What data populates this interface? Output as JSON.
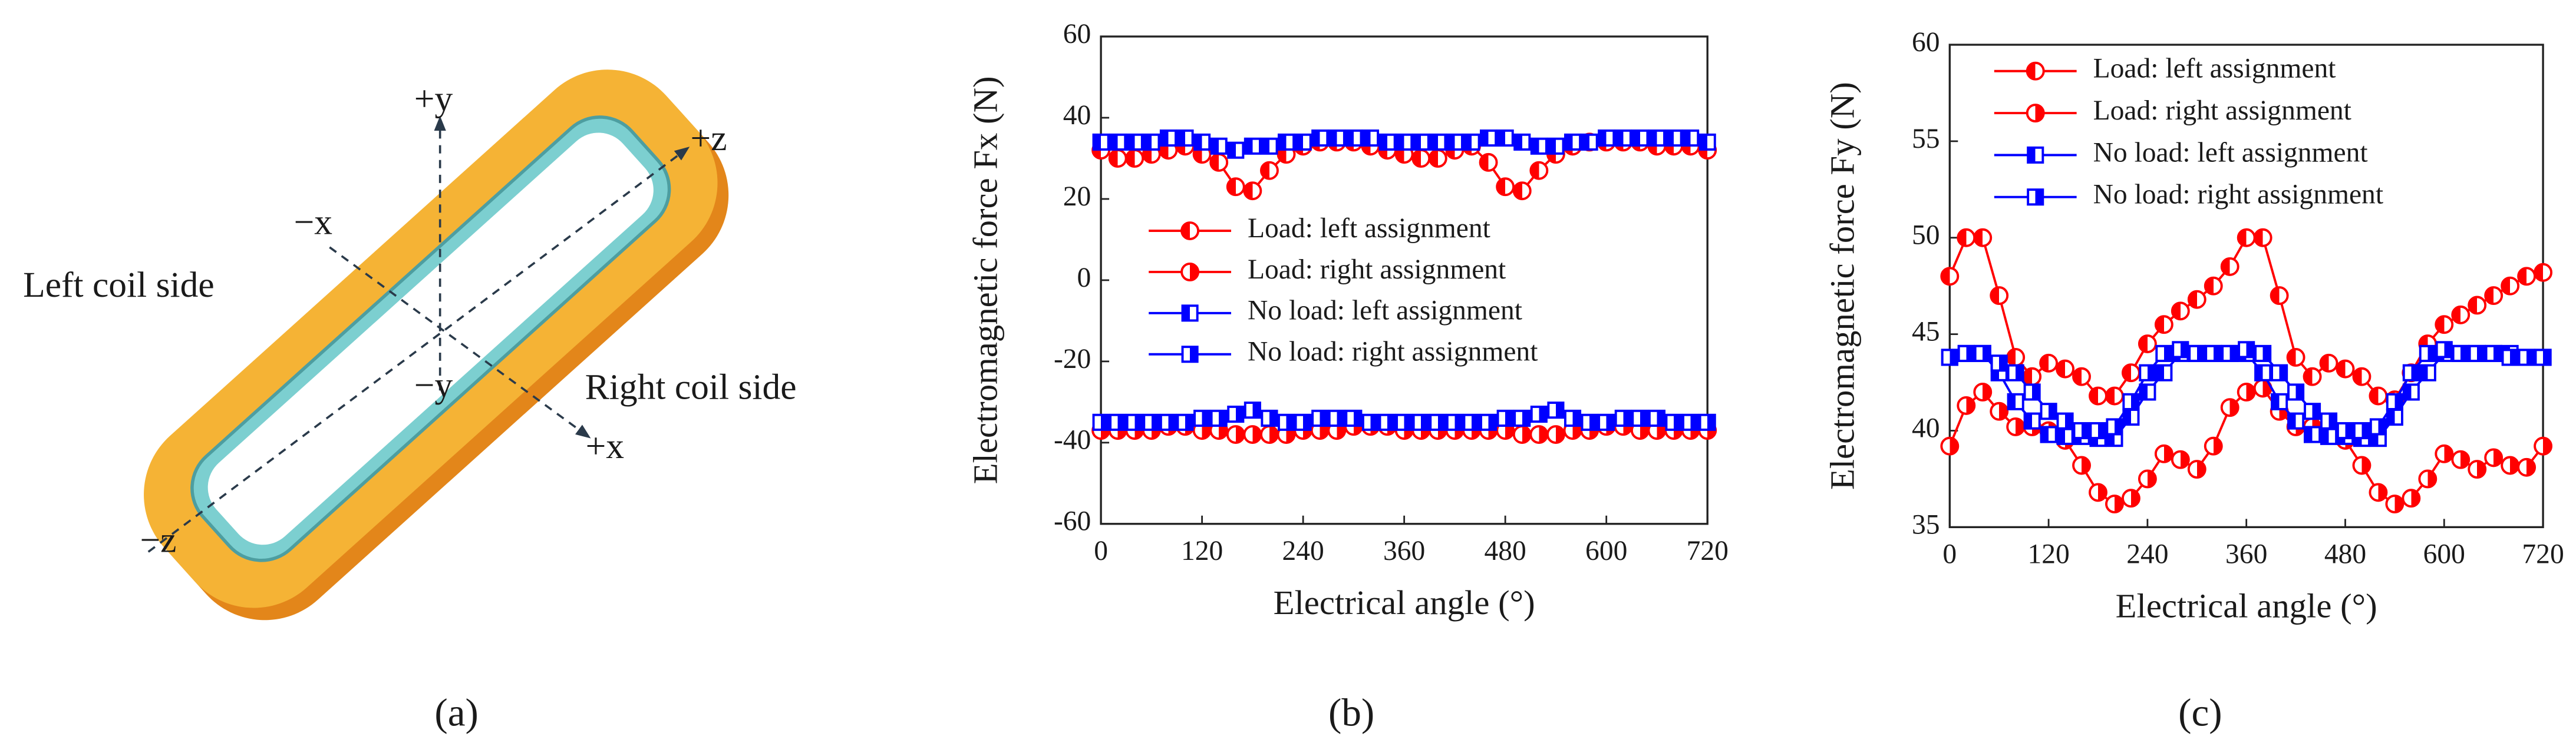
{
  "diagram": {
    "labels": [
      "+y",
      "+z",
      "−x",
      "Left coil side",
      "−y",
      "Right coil side",
      "+x",
      "−z"
    ]
  },
  "panel_labels": [
    "(a)",
    "(b)",
    "(c)"
  ],
  "chart_data": [
    {
      "type": "line",
      "x_label": "Electrical angle (°)",
      "y_label": "Electromagnetic force Fx (N)",
      "x": [
        0,
        20,
        40,
        60,
        80,
        100,
        120,
        140,
        160,
        180,
        200,
        220,
        240,
        260,
        280,
        300,
        320,
        340,
        360,
        380,
        400,
        420,
        440,
        460,
        480,
        500,
        520,
        540,
        560,
        580,
        600,
        620,
        640,
        660,
        680,
        700,
        720
      ],
      "xlim": [
        0,
        720
      ],
      "xticks": [
        0,
        120,
        240,
        360,
        480,
        600,
        720
      ],
      "ylim": [
        -60,
        60
      ],
      "yticks": [
        -60,
        -40,
        -20,
        0,
        20,
        40,
        60
      ],
      "legend": "center",
      "series": [
        {
          "name": "Load: left assignment",
          "color": "#ff0000",
          "marker": "circle",
          "half": "left",
          "values": [
            32,
            30,
            30,
            31,
            32,
            33,
            31,
            29,
            23,
            22,
            27,
            31,
            33,
            34,
            34,
            34,
            33,
            32,
            31,
            30,
            30,
            32,
            33,
            29,
            23,
            22,
            27,
            31,
            33,
            34,
            34,
            34,
            34,
            33,
            33,
            33,
            32
          ]
        },
        {
          "name": "Load: right assignment",
          "color": "#ff0000",
          "marker": "circle",
          "half": "right",
          "values": [
            -37,
            -37,
            -37,
            -37,
            -36,
            -36,
            -37,
            -37,
            -38,
            -38,
            -38,
            -38,
            -37,
            -37,
            -37,
            -36,
            -36,
            -36,
            -37,
            -37,
            -37,
            -37,
            -37,
            -37,
            -37,
            -38,
            -38,
            -38,
            -37,
            -37,
            -36,
            -36,
            -37,
            -37,
            -37,
            -37,
            -37
          ]
        },
        {
          "name": "No load: left assignment",
          "color": "#0000ff",
          "marker": "square",
          "half": "left",
          "values": [
            34,
            34,
            34,
            34,
            35,
            35,
            34,
            33,
            32,
            33,
            33,
            34,
            34,
            35,
            35,
            35,
            35,
            34,
            34,
            34,
            34,
            34,
            34,
            35,
            35,
            34,
            33,
            33,
            34,
            34,
            35,
            35,
            35,
            35,
            35,
            35,
            34
          ]
        },
        {
          "name": "No load: right assignment",
          "color": "#0000ff",
          "marker": "square",
          "half": "right",
          "values": [
            -35,
            -35,
            -35,
            -35,
            -35,
            -35,
            -34,
            -34,
            -33,
            -32,
            -34,
            -35,
            -35,
            -34,
            -34,
            -34,
            -35,
            -35,
            -35,
            -35,
            -35,
            -35,
            -35,
            -35,
            -34,
            -34,
            -33,
            -32,
            -34,
            -35,
            -35,
            -34,
            -34,
            -34,
            -35,
            -35,
            -35
          ]
        }
      ]
    },
    {
      "type": "line",
      "x_label": "Electrical angle (°)",
      "y_label": "Electromagnetic force Fy (N)",
      "x": [
        0,
        20,
        40,
        60,
        80,
        100,
        120,
        140,
        160,
        180,
        200,
        220,
        240,
        260,
        280,
        300,
        320,
        340,
        360,
        380,
        400,
        420,
        440,
        460,
        480,
        500,
        520,
        540,
        560,
        580,
        600,
        620,
        640,
        660,
        680,
        700,
        720
      ],
      "xlim": [
        0,
        720
      ],
      "xticks": [
        0,
        120,
        240,
        360,
        480,
        600,
        720
      ],
      "ylim": [
        35,
        60
      ],
      "yticks": [
        35,
        40,
        45,
        50,
        55,
        60
      ],
      "legend": "upper left",
      "series": [
        {
          "name": "Load: left assignment",
          "color": "#ff0000",
          "marker": "circle",
          "half": "left",
          "values": [
            48,
            50,
            50,
            47,
            43.8,
            42.8,
            43.5,
            43.2,
            42.8,
            41.8,
            41.8,
            43,
            44.5,
            45.5,
            46.2,
            46.8,
            47.5,
            48.5,
            50,
            50,
            47,
            43.8,
            42.8,
            43.5,
            43.2,
            42.8,
            41.8,
            41.6,
            43,
            44.5,
            45.5,
            46,
            46.5,
            47,
            47.5,
            48,
            48.2
          ]
        },
        {
          "name": "Load: right assignment",
          "color": "#ff0000",
          "marker": "circle",
          "half": "right",
          "values": [
            39.2,
            41.3,
            42,
            41,
            40.2,
            40.2,
            40,
            39.5,
            38.2,
            36.8,
            36.2,
            36.5,
            37.5,
            38.8,
            38.5,
            38,
            39.2,
            41.2,
            42,
            42.2,
            41,
            40.2,
            40.2,
            40,
            39.5,
            38.2,
            36.8,
            36.2,
            36.5,
            37.5,
            38.8,
            38.5,
            38,
            38.6,
            38.2,
            38.1,
            39.2
          ]
        },
        {
          "name": "No load: left assignment",
          "color": "#0000ff",
          "marker": "square",
          "half": "left",
          "values": [
            43.8,
            44,
            44,
            43,
            41.5,
            40.5,
            39.8,
            39.7,
            39.7,
            39.6,
            39.6,
            40.7,
            42,
            43,
            44,
            44,
            44,
            44,
            44,
            43,
            41.5,
            40.5,
            39.8,
            39.7,
            39.7,
            39.6,
            39.6,
            40.7,
            42,
            43,
            44,
            44,
            44,
            44,
            44,
            43.8,
            43.8
          ]
        },
        {
          "name": "No load: right assignment",
          "color": "#0000ff",
          "marker": "square",
          "half": "right",
          "values": [
            43.8,
            44,
            44,
            43.5,
            43,
            42,
            41,
            40.5,
            40,
            40,
            40.2,
            41.5,
            43,
            44,
            44.2,
            44,
            44,
            44,
            44.2,
            44,
            43,
            42,
            41,
            40.5,
            40,
            40,
            40.2,
            41.5,
            43,
            44,
            44.2,
            44,
            44,
            44,
            43.8,
            43.8,
            43.8
          ]
        }
      ]
    }
  ]
}
